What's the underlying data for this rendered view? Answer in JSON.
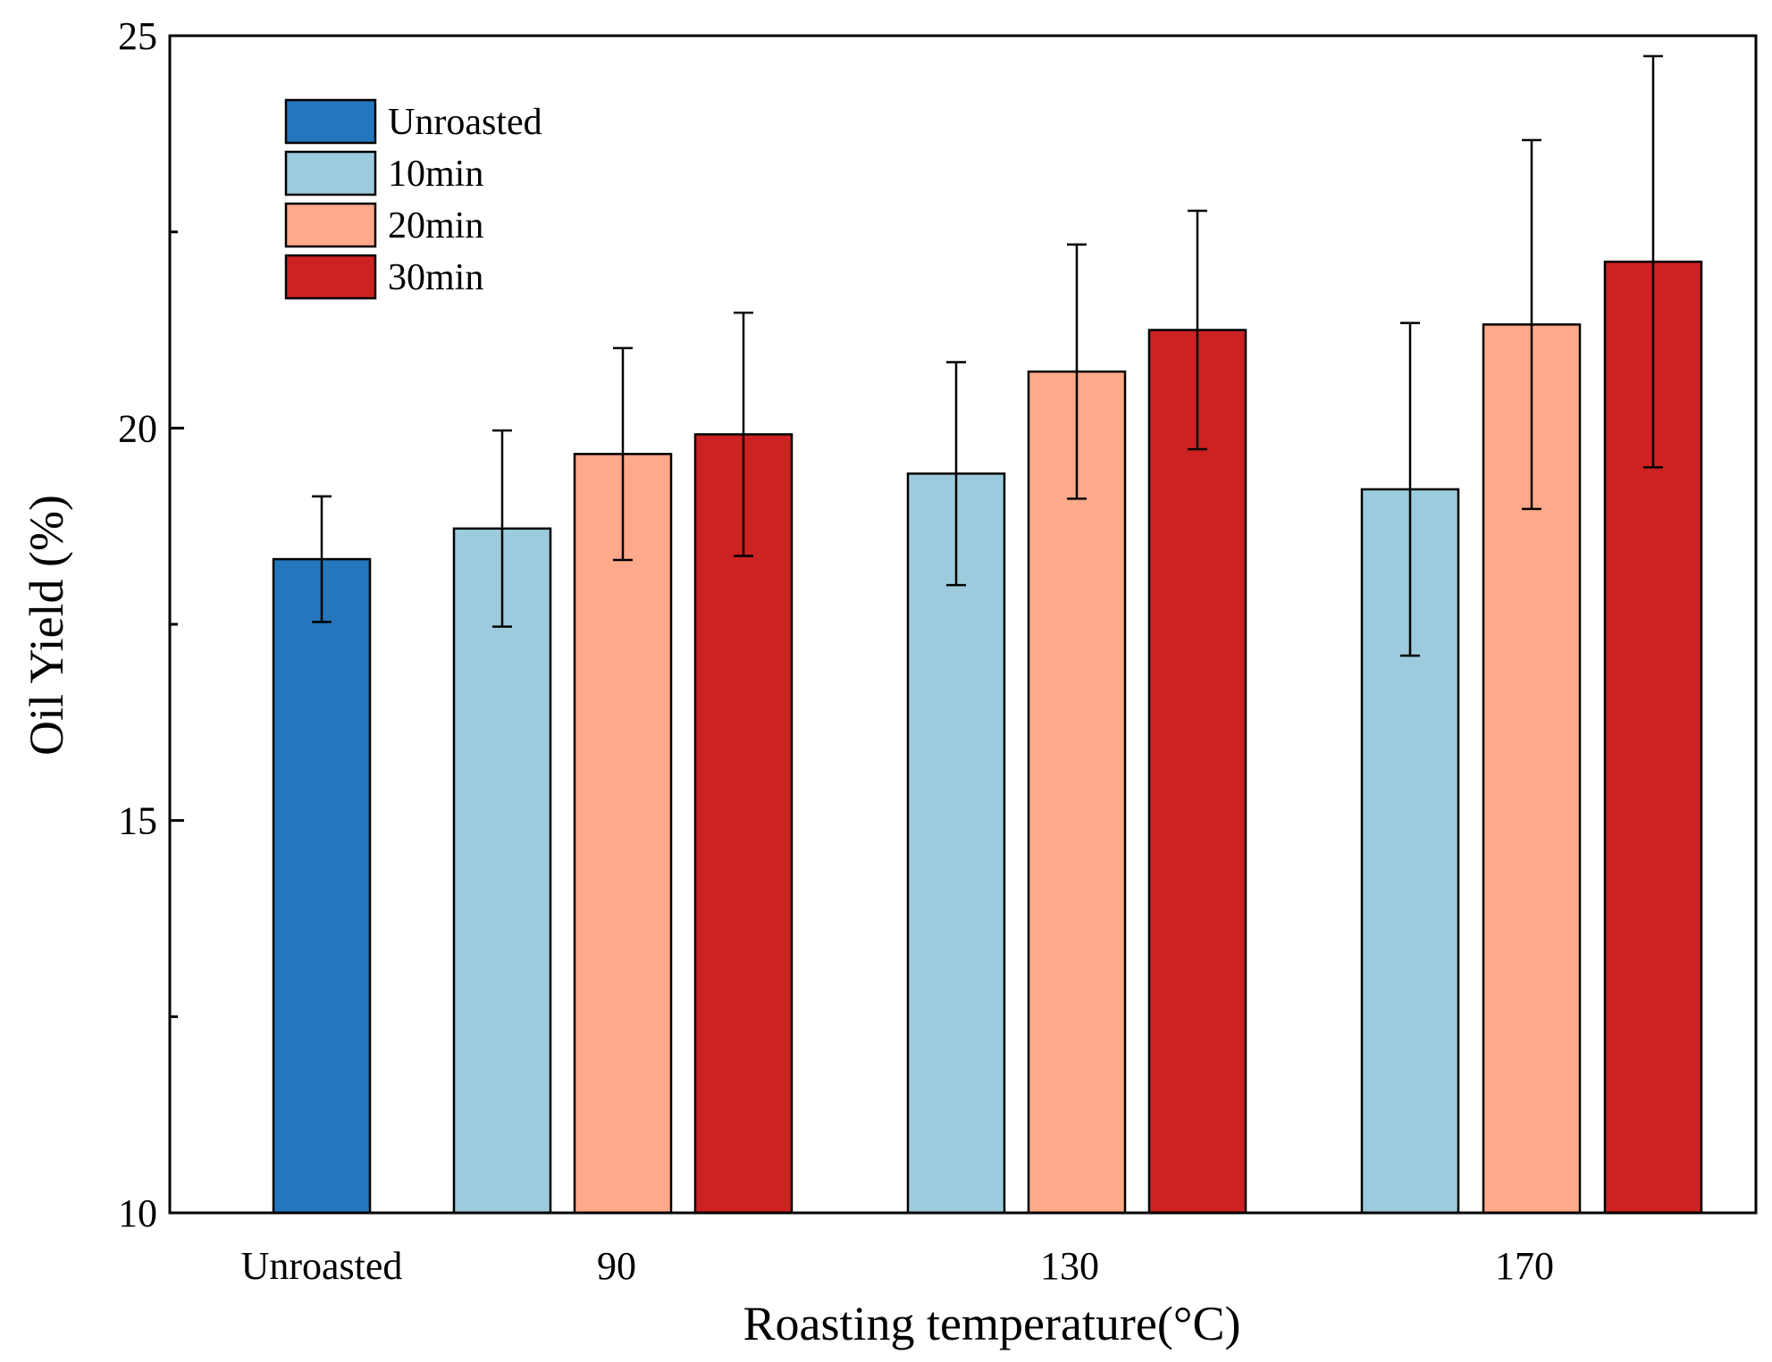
{
  "chart_data": {
    "type": "bar",
    "title": "",
    "xlabel": "Roasting temperature(°C)",
    "ylabel": "Oil Yield (%)",
    "ylim": [
      10,
      25
    ],
    "yticks": [
      10,
      15,
      20,
      25
    ],
    "grid": false,
    "legend_position": "top-left",
    "categories": [
      "Unroasted",
      "90",
      "130",
      "170"
    ],
    "series": [
      {
        "name": "Unroasted",
        "color": "#2477bc",
        "values": [
          18.33,
          null,
          null,
          null
        ],
        "errors": [
          0.8,
          null,
          null,
          null
        ]
      },
      {
        "name": "10min",
        "color": "#9dcbdd",
        "values": [
          null,
          18.72,
          19.42,
          19.22
        ],
        "errors": [
          null,
          1.25,
          1.42,
          2.12
        ]
      },
      {
        "name": "20min",
        "color": "#fea98a",
        "values": [
          null,
          19.67,
          20.72,
          21.32
        ],
        "errors": [
          null,
          1.35,
          1.62,
          2.35
        ]
      },
      {
        "name": "30min",
        "color": "#cd2222",
        "values": [
          null,
          19.92,
          21.25,
          22.12
        ],
        "errors": [
          null,
          1.55,
          1.52,
          2.62
        ]
      }
    ]
  }
}
